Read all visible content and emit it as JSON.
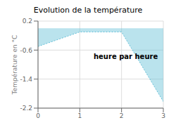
{
  "chart_data": {
    "type": "area",
    "title": "Evolution de la température",
    "y_label": "Température en °C",
    "annotations": [
      "heure par heure"
    ],
    "x": [
      0,
      1,
      2,
      3
    ],
    "series": [
      {
        "color": "#66c0d8",
        "values": [
          -0.5,
          -0.1,
          -0.1,
          -2.02
        ],
        "line_style": "dotted"
      }
    ],
    "xlim": [
      0,
      3
    ],
    "xticks": [
      0,
      1,
      2,
      3
    ],
    "ylim": [
      -2.2,
      0.2
    ],
    "yticks": [
      0.2,
      -0.6,
      -1.4,
      -2.2
    ],
    "grid": true
  }
}
